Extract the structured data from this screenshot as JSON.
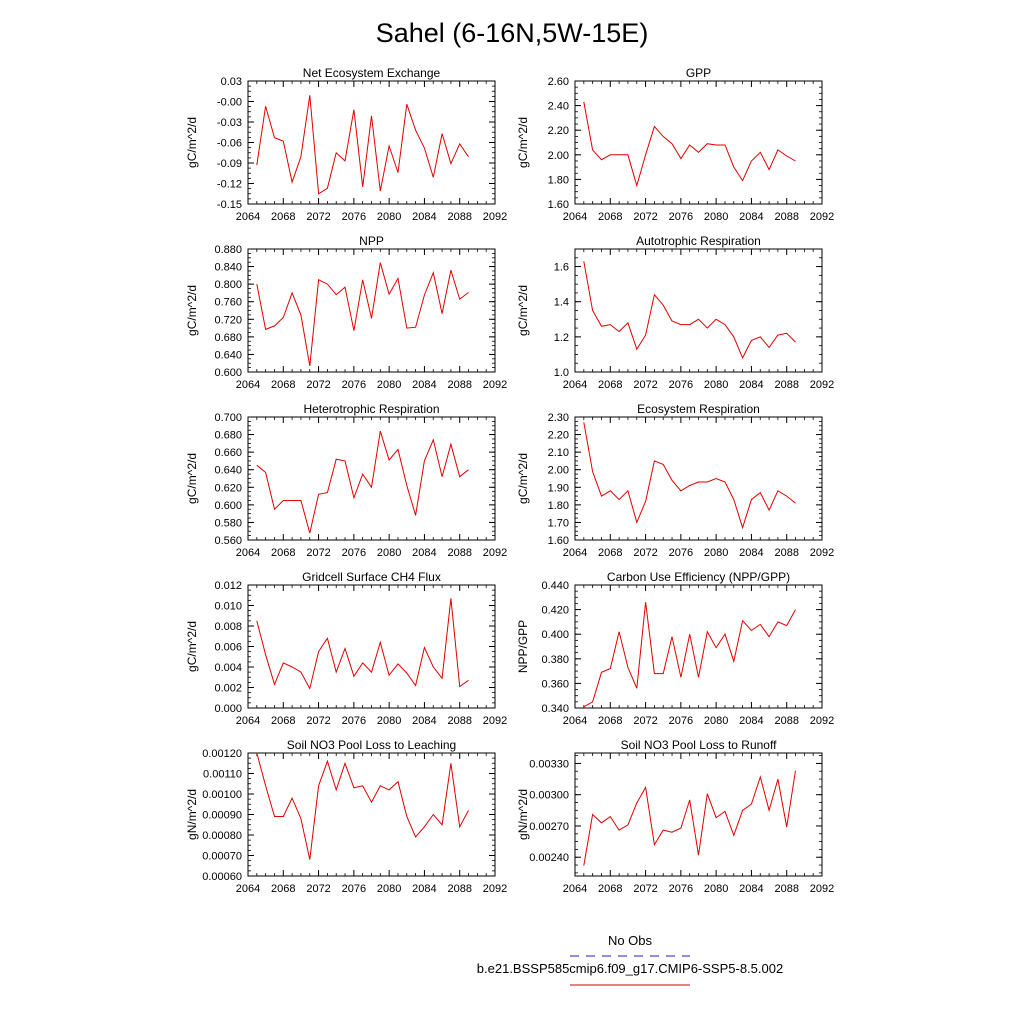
{
  "figure": {
    "title": "Sahel (6-16N,5W-15E)",
    "legend": [
      {
        "label": "No Obs",
        "color": "#4b4bd6",
        "dashed": true
      },
      {
        "label": "b.e21.BSSP585cmip6.f09_g17.CMIP6-SSP5-8.5.002",
        "color": "#e0303a",
        "dashed": false
      }
    ],
    "line_color": "#e00000"
  },
  "chart_data": [
    {
      "type": "line",
      "title": "Net Ecosystem Exchange",
      "ylabel": "gC/m^2/d",
      "xlim": [
        2064,
        2092
      ],
      "xticks": [
        "2064",
        "2068",
        "2072",
        "2076",
        "2080",
        "2084",
        "2088",
        "2092"
      ],
      "ylim": [
        -0.15,
        0.03
      ],
      "yticks": [
        "0.03",
        "-0.00",
        "-0.03",
        "-0.06",
        "-0.09",
        "-0.12",
        "-0.15"
      ],
      "x": [
        2065,
        2066,
        2067,
        2068,
        2069,
        2070,
        2071,
        2072,
        2073,
        2074,
        2075,
        2076,
        2077,
        2078,
        2079,
        2080,
        2081,
        2082,
        2083,
        2084,
        2085,
        2086,
        2087,
        2088,
        2089
      ],
      "values": [
        -0.093,
        -0.007,
        -0.053,
        -0.058,
        -0.118,
        -0.081,
        0.009,
        -0.135,
        -0.127,
        -0.075,
        -0.087,
        -0.012,
        -0.125,
        -0.021,
        -0.131,
        -0.065,
        -0.104,
        -0.004,
        -0.042,
        -0.068,
        -0.111,
        -0.047,
        -0.091,
        -0.062,
        -0.081
      ]
    },
    {
      "type": "line",
      "title": "GPP",
      "ylabel": "gC/m^2/d",
      "xlim": [
        2064,
        2092
      ],
      "xticks": [
        "2064",
        "2068",
        "2072",
        "2076",
        "2080",
        "2084",
        "2088",
        "2092"
      ],
      "ylim": [
        1.6,
        2.6
      ],
      "yticks": [
        "2.60",
        "2.40",
        "2.20",
        "2.00",
        "1.80",
        "1.60"
      ],
      "x": [
        2065,
        2066,
        2067,
        2068,
        2069,
        2070,
        2071,
        2072,
        2073,
        2074,
        2075,
        2076,
        2077,
        2078,
        2079,
        2080,
        2081,
        2082,
        2083,
        2084,
        2085,
        2086,
        2087,
        2088,
        2089
      ],
      "values": [
        2.43,
        2.04,
        1.96,
        2.0,
        2.0,
        2.0,
        1.75,
        2.0,
        2.23,
        2.15,
        2.09,
        1.97,
        2.08,
        2.02,
        2.09,
        2.08,
        2.08,
        1.9,
        1.79,
        1.95,
        2.02,
        1.88,
        2.04,
        1.99,
        1.95
      ]
    },
    {
      "type": "line",
      "title": "NPP",
      "ylabel": "gC/m^2/d",
      "xlim": [
        2064,
        2092
      ],
      "xticks": [
        "2064",
        "2068",
        "2072",
        "2076",
        "2080",
        "2084",
        "2088",
        "2092"
      ],
      "ylim": [
        0.6,
        0.88
      ],
      "yticks": [
        "0.880",
        "0.840",
        "0.800",
        "0.760",
        "0.720",
        "0.680",
        "0.640",
        "0.600"
      ],
      "x": [
        2065,
        2066,
        2067,
        2068,
        2069,
        2070,
        2071,
        2072,
        2073,
        2074,
        2075,
        2076,
        2077,
        2078,
        2079,
        2080,
        2081,
        2082,
        2083,
        2084,
        2085,
        2086,
        2087,
        2088,
        2089
      ],
      "values": [
        0.8,
        0.697,
        0.705,
        0.724,
        0.78,
        0.73,
        0.614,
        0.81,
        0.8,
        0.776,
        0.793,
        0.694,
        0.81,
        0.722,
        0.849,
        0.777,
        0.813,
        0.7,
        0.702,
        0.775,
        0.826,
        0.733,
        0.832,
        0.766,
        0.781
      ]
    },
    {
      "type": "line",
      "title": "Autotrophic Respiration",
      "ylabel": "gC/m^2/d",
      "xlim": [
        2064,
        2092
      ],
      "xticks": [
        "2064",
        "2068",
        "2072",
        "2076",
        "2080",
        "2084",
        "2088",
        "2092"
      ],
      "ylim": [
        1.0,
        1.7
      ],
      "yticks": [
        "1.6",
        "1.4",
        "1.2",
        "1.0"
      ],
      "x": [
        2065,
        2066,
        2067,
        2068,
        2069,
        2070,
        2071,
        2072,
        2073,
        2074,
        2075,
        2076,
        2077,
        2078,
        2079,
        2080,
        2081,
        2082,
        2083,
        2084,
        2085,
        2086,
        2087,
        2088,
        2089
      ],
      "values": [
        1.63,
        1.35,
        1.26,
        1.27,
        1.23,
        1.28,
        1.13,
        1.21,
        1.44,
        1.38,
        1.29,
        1.27,
        1.27,
        1.3,
        1.25,
        1.3,
        1.27,
        1.2,
        1.08,
        1.18,
        1.2,
        1.14,
        1.21,
        1.22,
        1.17
      ]
    },
    {
      "type": "line",
      "title": "Heterotrophic Respiration",
      "ylabel": "gC/m^2/d",
      "xlim": [
        2064,
        2092
      ],
      "xticks": [
        "2064",
        "2068",
        "2072",
        "2076",
        "2080",
        "2084",
        "2088",
        "2092"
      ],
      "ylim": [
        0.56,
        0.7
      ],
      "yticks": [
        "0.700",
        "0.680",
        "0.660",
        "0.640",
        "0.620",
        "0.600",
        "0.580",
        "0.560"
      ],
      "x": [
        2065,
        2066,
        2067,
        2068,
        2069,
        2070,
        2071,
        2072,
        2073,
        2074,
        2075,
        2076,
        2077,
        2078,
        2079,
        2080,
        2081,
        2082,
        2083,
        2084,
        2085,
        2086,
        2087,
        2088,
        2089
      ],
      "values": [
        0.645,
        0.637,
        0.595,
        0.605,
        0.605,
        0.605,
        0.568,
        0.612,
        0.614,
        0.652,
        0.65,
        0.608,
        0.635,
        0.62,
        0.684,
        0.651,
        0.663,
        0.622,
        0.588,
        0.65,
        0.674,
        0.632,
        0.669,
        0.632,
        0.64
      ]
    },
    {
      "type": "line",
      "title": "Ecosystem Respiration",
      "ylabel": "gC/m^2/d",
      "xlim": [
        2064,
        2092
      ],
      "xticks": [
        "2064",
        "2068",
        "2072",
        "2076",
        "2080",
        "2084",
        "2088",
        "2092"
      ],
      "ylim": [
        1.6,
        2.3
      ],
      "yticks": [
        "2.30",
        "2.20",
        "2.10",
        "2.00",
        "1.90",
        "1.80",
        "1.70",
        "1.60"
      ],
      "x": [
        2065,
        2066,
        2067,
        2068,
        2069,
        2070,
        2071,
        2072,
        2073,
        2074,
        2075,
        2076,
        2077,
        2078,
        2079,
        2080,
        2081,
        2082,
        2083,
        2084,
        2085,
        2086,
        2087,
        2088,
        2089
      ],
      "values": [
        2.27,
        1.99,
        1.85,
        1.88,
        1.83,
        1.88,
        1.7,
        1.82,
        2.05,
        2.03,
        1.94,
        1.88,
        1.91,
        1.93,
        1.93,
        1.95,
        1.93,
        1.83,
        1.67,
        1.83,
        1.87,
        1.77,
        1.88,
        1.85,
        1.81
      ]
    },
    {
      "type": "line",
      "title": "Gridcell Surface CH4 Flux",
      "ylabel": "gC/m^2/d",
      "xlim": [
        2064,
        2092
      ],
      "xticks": [
        "2064",
        "2068",
        "2072",
        "2076",
        "2080",
        "2084",
        "2088",
        "2092"
      ],
      "ylim": [
        0.0,
        0.012
      ],
      "yticks": [
        "0.012",
        "0.010",
        "0.008",
        "0.006",
        "0.004",
        "0.002",
        "0.000"
      ],
      "x": [
        2065,
        2066,
        2067,
        2068,
        2069,
        2070,
        2071,
        2072,
        2073,
        2074,
        2075,
        2076,
        2077,
        2078,
        2079,
        2080,
        2081,
        2082,
        2083,
        2084,
        2085,
        2086,
        2087,
        2088,
        2089
      ],
      "values": [
        0.0085,
        0.0052,
        0.0023,
        0.0044,
        0.004,
        0.0035,
        0.0019,
        0.0055,
        0.0068,
        0.0035,
        0.0058,
        0.0031,
        0.0044,
        0.0035,
        0.0064,
        0.0032,
        0.0043,
        0.0034,
        0.0022,
        0.0059,
        0.004,
        0.0029,
        0.0107,
        0.0021,
        0.0027
      ]
    },
    {
      "type": "line",
      "title": "Carbon Use Efficiency (NPP/GPP)",
      "ylabel": "NPP/GPP",
      "xlim": [
        2064,
        2092
      ],
      "xticks": [
        "2064",
        "2068",
        "2072",
        "2076",
        "2080",
        "2084",
        "2088",
        "2092"
      ],
      "ylim": [
        0.34,
        0.44
      ],
      "yticks": [
        "0.440",
        "0.420",
        "0.400",
        "0.380",
        "0.360",
        "0.340"
      ],
      "x": [
        2065,
        2066,
        2067,
        2068,
        2069,
        2070,
        2071,
        2072,
        2073,
        2074,
        2075,
        2076,
        2077,
        2078,
        2079,
        2080,
        2081,
        2082,
        2083,
        2084,
        2085,
        2086,
        2087,
        2088,
        2089
      ],
      "values": [
        0.341,
        0.345,
        0.369,
        0.372,
        0.402,
        0.373,
        0.356,
        0.426,
        0.368,
        0.368,
        0.398,
        0.365,
        0.4,
        0.365,
        0.402,
        0.389,
        0.4,
        0.378,
        0.411,
        0.403,
        0.408,
        0.398,
        0.41,
        0.407,
        0.42
      ]
    },
    {
      "type": "line",
      "title": "Soil NO3 Pool Loss to Leaching",
      "ylabel": "gN/m^2/d",
      "xlim": [
        2064,
        2092
      ],
      "xticks": [
        "2064",
        "2068",
        "2072",
        "2076",
        "2080",
        "2084",
        "2088",
        "2092"
      ],
      "ylim": [
        0.0006,
        0.0012
      ],
      "yticks": [
        "0.00120",
        "0.00110",
        "0.00100",
        "0.00090",
        "0.00080",
        "0.00070",
        "0.00060"
      ],
      "x": [
        2065,
        2066,
        2067,
        2068,
        2069,
        2070,
        2071,
        2072,
        2073,
        2074,
        2075,
        2076,
        2077,
        2078,
        2079,
        2080,
        2081,
        2082,
        2083,
        2084,
        2085,
        2086,
        2087,
        2088,
        2089
      ],
      "values": [
        0.00121,
        0.00104,
        0.00089,
        0.00089,
        0.00098,
        0.00088,
        0.00068,
        0.00104,
        0.00116,
        0.00102,
        0.00115,
        0.00103,
        0.00104,
        0.00096,
        0.00104,
        0.00102,
        0.00106,
        0.00089,
        0.00079,
        0.00084,
        0.0009,
        0.00085,
        0.00115,
        0.00084,
        0.00092
      ]
    },
    {
      "type": "line",
      "title": "Soil NO3 Pool Loss to Runoff",
      "ylabel": "gN/m^2/d",
      "xlim": [
        2064,
        2092
      ],
      "xticks": [
        "2064",
        "2068",
        "2072",
        "2076",
        "2080",
        "2084",
        "2088",
        "2092"
      ],
      "ylim": [
        0.00222,
        0.0034
      ],
      "yticks": [
        "0.00330",
        "0.00300",
        "0.00270",
        "0.00240"
      ],
      "x": [
        2065,
        2066,
        2067,
        2068,
        2069,
        2070,
        2071,
        2072,
        2073,
        2074,
        2075,
        2076,
        2077,
        2078,
        2079,
        2080,
        2081,
        2082,
        2083,
        2084,
        2085,
        2086,
        2087,
        2088,
        2089
      ],
      "values": [
        0.00232,
        0.00281,
        0.00273,
        0.00279,
        0.00266,
        0.00271,
        0.00292,
        0.00307,
        0.00252,
        0.00266,
        0.00264,
        0.00268,
        0.00295,
        0.00242,
        0.00301,
        0.00278,
        0.00284,
        0.00261,
        0.00285,
        0.00291,
        0.00317,
        0.00285,
        0.00315,
        0.00269,
        0.00323
      ]
    }
  ]
}
